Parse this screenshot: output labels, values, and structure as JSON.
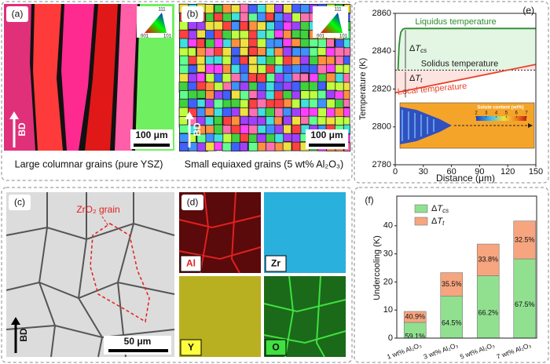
{
  "panels": {
    "a": {
      "label": "(a)",
      "scale_bar": "100 μm",
      "direction": "BD",
      "ipf_corners": [
        "111",
        "001",
        "101"
      ],
      "caption": "Large columnar grains (pure YSZ)"
    },
    "b": {
      "label": "(b)",
      "scale_bar": "100 μm",
      "direction": "BD",
      "ipf_corners": [
        "111",
        "001",
        "101"
      ],
      "caption": "Small equiaxed grains (5 wt% Al₂O₃)"
    },
    "c": {
      "label": "(c)",
      "annotation": "ZrO₂ grain",
      "scale_bar": "50 μm",
      "direction": "BD"
    },
    "d": {
      "label": "(d)",
      "maps": [
        "Al",
        "Zr",
        "Y",
        "O"
      ]
    }
  },
  "chart_data": [
    {
      "type": "line",
      "label": "(e)",
      "x_label": "Distance (μm)",
      "y_label": "Temperature (K)",
      "xlim": [
        0,
        150
      ],
      "xticks": [
        0,
        30,
        60,
        90,
        120,
        150
      ],
      "ylim": [
        2780,
        2860
      ],
      "yticks": [
        2780,
        2800,
        2820,
        2840,
        2860
      ],
      "series": [
        {
          "name": "Liquidus temperature",
          "color": "#2e8b2e",
          "x": [
            3,
            4,
            5,
            6,
            8,
            10,
            150
          ],
          "values": [
            2830,
            2842,
            2847,
            2850,
            2851.5,
            2852,
            2852
          ]
        },
        {
          "name": "Solidus temperature",
          "color": "#222222",
          "dashed": true,
          "x": [
            0,
            150
          ],
          "values": [
            2830,
            2830
          ]
        },
        {
          "name": "Local temperature",
          "color": "#e8432a",
          "x": [
            0,
            150
          ],
          "values": [
            2818,
            2833
          ]
        }
      ],
      "annotations": [
        "ΔTcs",
        "ΔTt"
      ],
      "inset": {
        "title": "Solute content (wt%)",
        "ticks": [
          2,
          3,
          4,
          5,
          6,
          7
        ]
      }
    },
    {
      "type": "stacked-bar",
      "label": "(f)",
      "y_label": "Undercooling (K)",
      "categories": [
        "1 wt% Al₂O₃",
        "3 wt% Al₂O₃",
        "5 wt% Al₂O₃",
        "7 wt% Al₂O₃"
      ],
      "ylim": [
        0,
        50
      ],
      "yticks": [
        0,
        10,
        20,
        30,
        40
      ],
      "series": [
        {
          "name": "ΔTcs",
          "color": "#90e090",
          "values": [
            5.6,
            15.0,
            22.2,
            28.2
          ],
          "segment_labels": [
            "59.1%",
            "64.5%",
            "66.2%",
            "67.5%"
          ]
        },
        {
          "name": "ΔTt",
          "color": "#f7a57f",
          "values": [
            3.9,
            8.3,
            11.3,
            13.5
          ],
          "segment_labels": [
            "40.9%",
            "35.5%",
            "33.8%",
            "32.5%"
          ]
        }
      ]
    }
  ]
}
